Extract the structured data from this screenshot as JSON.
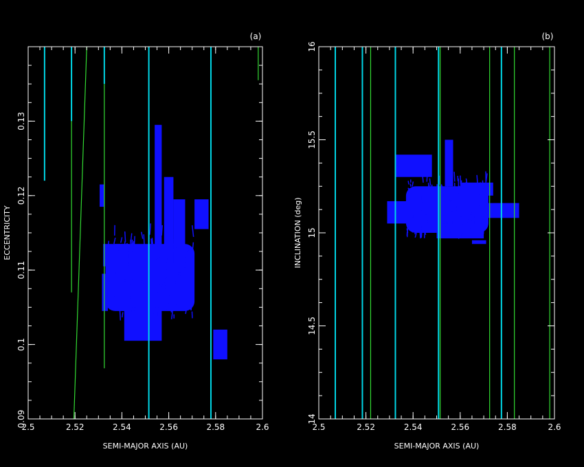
{
  "colors": {
    "background": "#000000",
    "axis": "#ffffff",
    "cyan_lines": "#00d8e8",
    "green_lines": "#33dd33",
    "cloud": "#1010ff"
  },
  "chart_data": [
    {
      "type": "scatter",
      "panel_label": "(a)",
      "xlabel": "SEMI-MAJOR AXIS (AU)",
      "ylabel": "ECCENTRICITY",
      "xlim": [
        2.5,
        2.6
      ],
      "ylim": [
        0.09,
        0.14
      ],
      "xticks": [
        2.5,
        2.52,
        2.54,
        2.56,
        2.58,
        2.6
      ],
      "xtick_labels": [
        "2.5",
        "2.52",
        "2.54",
        "2.56",
        "2.58",
        "2.6"
      ],
      "yticks": [
        0.09,
        0.1,
        0.11,
        0.12,
        0.13
      ],
      "ytick_labels": [
        "0.09",
        "0.1",
        "0.11",
        "0.12",
        "0.13"
      ],
      "grid": false,
      "resonance_lines": [
        {
          "color": "cyan",
          "x0": 2.507,
          "y0": 0.122,
          "x1": 2.507,
          "y1": 0.14
        },
        {
          "color": "cyan",
          "x0": 2.5185,
          "y0": 0.13,
          "x1": 2.5185,
          "y1": 0.14
        },
        {
          "color": "green",
          "x0": 2.5185,
          "y0": 0.107,
          "x1": 2.5185,
          "y1": 0.13
        },
        {
          "color": "green",
          "x0": 2.5195,
          "y0": 0.09,
          "x1": 2.525,
          "y1": 0.14
        },
        {
          "color": "green",
          "x0": 2.5325,
          "y0": 0.0968,
          "x1": 2.5325,
          "y1": 0.135
        },
        {
          "color": "cyan",
          "x0": 2.5325,
          "y0": 0.135,
          "x1": 2.5325,
          "y1": 0.14
        },
        {
          "color": "cyan",
          "x0": 2.5515,
          "y0": 0.09,
          "x1": 2.5515,
          "y1": 0.14
        },
        {
          "color": "cyan",
          "x0": 2.578,
          "y0": 0.09,
          "x1": 2.578,
          "y1": 0.14
        },
        {
          "color": "green",
          "x0": 2.5982,
          "y0": 0.1355,
          "x1": 2.5982,
          "y1": 0.14
        }
      ],
      "cloud": {
        "core": {
          "x": [
            2.533,
            2.571
          ],
          "y": [
            0.1045,
            0.1135
          ]
        },
        "features": [
          {
            "x": [
              2.5305,
              2.5325
            ],
            "y": [
              0.1185,
              0.1215
            ]
          },
          {
            "x": [
              2.532,
              2.543
            ],
            "y": [
              0.1105,
              0.1135
            ]
          },
          {
            "x": [
              2.554,
              2.557
            ],
            "y": [
              0.113,
              0.1295
            ]
          },
          {
            "x": [
              2.558,
              2.562
            ],
            "y": [
              0.111,
              0.1225
            ]
          },
          {
            "x": [
              2.562,
              2.567
            ],
            "y": [
              0.111,
              0.1195
            ]
          },
          {
            "x": [
              2.571,
              2.577
            ],
            "y": [
              0.1155,
              0.1195
            ]
          },
          {
            "x": [
              2.541,
              2.557
            ],
            "y": [
              0.1005,
              0.105
            ]
          },
          {
            "x": [
              2.5315,
              2.534
            ],
            "y": [
              0.1045,
              0.1095
            ]
          },
          {
            "x": [
              2.579,
              2.585
            ],
            "y": [
              0.098,
              0.102
            ]
          }
        ]
      }
    },
    {
      "type": "scatter",
      "panel_label": "(b)",
      "xlabel": "SEMI-MAJOR AXIS (AU)",
      "ylabel": "INCLINATION (deg)",
      "xlim": [
        2.5,
        2.6
      ],
      "ylim": [
        14,
        16
      ],
      "xticks": [
        2.5,
        2.52,
        2.54,
        2.56,
        2.58,
        2.6
      ],
      "xtick_labels": [
        "2.5",
        "2.52",
        "2.54",
        "2.56",
        "2.58",
        "2.6"
      ],
      "yticks": [
        14,
        14.5,
        15,
        15.5,
        16
      ],
      "ytick_labels": [
        "14",
        "14.5",
        "15",
        "15.5",
        "16"
      ],
      "grid": false,
      "resonance_lines": [
        {
          "color": "cyan",
          "x0": 2.507,
          "y0": 14,
          "x1": 2.507,
          "y1": 16
        },
        {
          "color": "cyan",
          "x0": 2.5185,
          "y0": 14,
          "x1": 2.5185,
          "y1": 16
        },
        {
          "color": "green",
          "x0": 2.522,
          "y0": 14,
          "x1": 2.522,
          "y1": 16
        },
        {
          "color": "cyan",
          "x0": 2.5325,
          "y0": 14,
          "x1": 2.5325,
          "y1": 16
        },
        {
          "color": "cyan",
          "x0": 2.5508,
          "y0": 14,
          "x1": 2.5508,
          "y1": 16
        },
        {
          "color": "green",
          "x0": 2.5515,
          "y0": 14,
          "x1": 2.5515,
          "y1": 16
        },
        {
          "color": "green",
          "x0": 2.5725,
          "y0": 14,
          "x1": 2.5725,
          "y1": 16
        },
        {
          "color": "cyan",
          "x0": 2.5775,
          "y0": 14,
          "x1": 2.5775,
          "y1": 16
        },
        {
          "color": "green",
          "x0": 2.583,
          "y0": 14,
          "x1": 2.583,
          "y1": 16
        },
        {
          "color": "green",
          "x0": 2.598,
          "y0": 14,
          "x1": 2.598,
          "y1": 16
        }
      ],
      "cloud": {
        "core": {
          "x": [
            2.537,
            2.572
          ],
          "y": [
            15.0,
            15.25
          ]
        },
        "features": [
          {
            "x": [
              2.5325,
              2.548
            ],
            "y": [
              15.3,
              15.42
            ]
          },
          {
            "x": [
              2.5535,
              2.557
            ],
            "y": [
              15.25,
              15.5
            ]
          },
          {
            "x": [
              2.529,
              2.54
            ],
            "y": [
              15.05,
              15.17
            ]
          },
          {
            "x": [
              2.55,
              2.57
            ],
            "y": [
              14.97,
              15.05
            ]
          },
          {
            "x": [
              2.565,
              2.571
            ],
            "y": [
              14.94,
              14.96
            ]
          },
          {
            "x": [
              2.572,
              2.585
            ],
            "y": [
              15.08,
              15.16
            ]
          },
          {
            "x": [
              2.56,
              2.574
            ],
            "y": [
              15.2,
              15.27
            ]
          }
        ]
      }
    }
  ]
}
